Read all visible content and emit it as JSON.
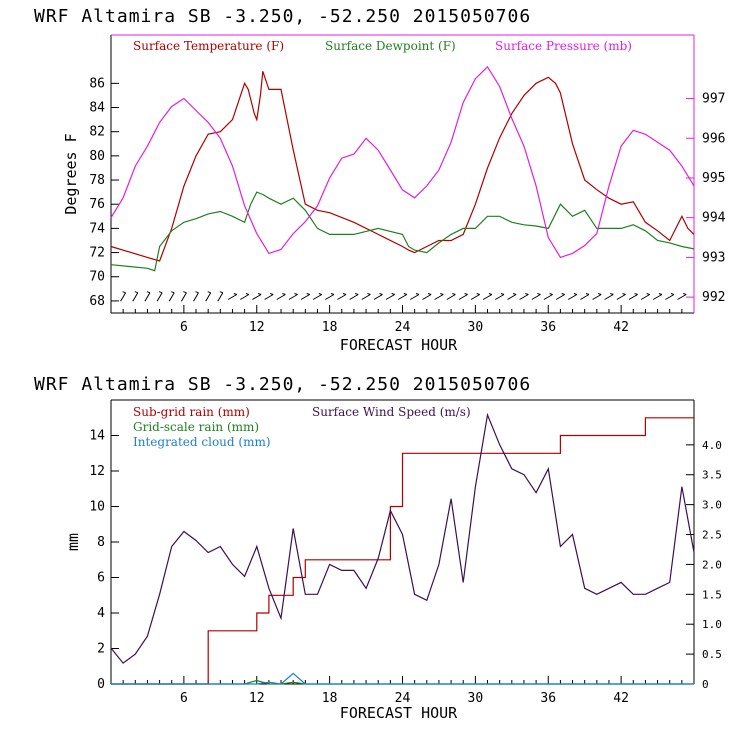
{
  "chart_data": [
    {
      "type": "line",
      "title": "WRF   Altamira  SB  -3.250, -52.250  2015050706",
      "xlabel": "FORECAST HOUR",
      "ylabel": "Degrees F",
      "y2label": "",
      "xlim": [
        0,
        48
      ],
      "ylim": [
        67,
        90
      ],
      "y2lim": [
        991.6,
        998.6
      ],
      "x_ticks": [
        "6",
        "12",
        "18",
        "24",
        "30",
        "36",
        "42"
      ],
      "y_ticks": [
        "68",
        "70",
        "72",
        "74",
        "76",
        "78",
        "80",
        "82",
        "84",
        "86"
      ],
      "y2_ticks": [
        "992",
        "993",
        "994",
        "995",
        "996",
        "997"
      ],
      "wind_barbs": "row of wind barbs along the bottom (light northeasterly)",
      "series": [
        {
          "name": "Surface Temperature (F)",
          "color": "#b00000",
          "axis": "left",
          "x": [
            0,
            3,
            4,
            5,
            6,
            7,
            8,
            9,
            10,
            11,
            11.3,
            11.8,
            12,
            12.3,
            12.5,
            13,
            14,
            15,
            16,
            17,
            18,
            20,
            22,
            24,
            24.5,
            25,
            26,
            27,
            28,
            29,
            30,
            31,
            32,
            33,
            34,
            35,
            36,
            36.6,
            37,
            38,
            39,
            40,
            41,
            42,
            43,
            44,
            45,
            46,
            47,
            47.5,
            48
          ],
          "values": [
            72.5,
            71.6,
            71.3,
            74,
            77.5,
            80,
            81.8,
            82,
            83,
            86,
            85.5,
            83.5,
            83,
            85,
            87,
            85.5,
            85.5,
            80.5,
            76,
            75.5,
            75.3,
            74.5,
            73.5,
            72.5,
            72.2,
            72,
            72.5,
            73,
            73,
            73.5,
            76,
            79,
            81.5,
            83.5,
            85,
            86,
            86.5,
            86,
            85.2,
            81,
            78,
            77.2,
            76.5,
            76,
            76.2,
            74.5,
            73.8,
            73,
            75,
            74,
            73.5
          ]
        },
        {
          "name": "Surface Dewpoint (F)",
          "color": "#208020",
          "axis": "left",
          "x": [
            0,
            3,
            3.6,
            4,
            5,
            6,
            7,
            8,
            9,
            10,
            11,
            11.5,
            12,
            12.5,
            13,
            14,
            15,
            16,
            17,
            18,
            20,
            22,
            24,
            24.5,
            25,
            26,
            27,
            28,
            29,
            30,
            31,
            32,
            33,
            34,
            35,
            36,
            37,
            38,
            39,
            40,
            41,
            42,
            43,
            44,
            45,
            46,
            47,
            48
          ],
          "values": [
            71,
            70.7,
            70.5,
            72.5,
            73.8,
            74.5,
            74.8,
            75.2,
            75.4,
            75,
            74.5,
            76,
            77,
            76.8,
            76.5,
            76,
            76.5,
            75.5,
            74,
            73.5,
            73.5,
            74,
            73.5,
            72.5,
            72.2,
            72,
            72.8,
            73.5,
            74,
            74,
            75,
            75,
            74.5,
            74.3,
            74.2,
            74,
            76,
            75,
            75.5,
            74,
            74,
            74,
            74.3,
            73.8,
            73,
            72.8,
            72.5,
            72.3
          ]
        },
        {
          "name": "Surface Pressure (mb)",
          "color": "#e020e0",
          "axis": "right",
          "x": [
            0,
            1,
            2,
            3,
            4,
            5,
            6,
            7,
            8,
            9,
            10,
            11,
            12,
            13,
            14,
            15,
            16,
            17,
            18,
            19,
            20,
            21,
            22,
            23,
            24,
            25,
            26,
            27,
            28,
            29,
            30,
            31,
            32,
            33,
            34,
            35,
            36,
            37,
            38,
            39,
            40,
            41,
            42,
            43,
            44,
            45,
            46,
            47,
            48
          ],
          "values": [
            994,
            994.5,
            995.3,
            995.8,
            996.4,
            996.8,
            997.0,
            996.7,
            996.4,
            996.0,
            995.3,
            994.3,
            993.6,
            993.1,
            993.2,
            993.6,
            993.9,
            994.3,
            995.0,
            995.5,
            995.6,
            996.0,
            995.7,
            995.2,
            994.7,
            994.5,
            994.8,
            995.2,
            995.9,
            996.9,
            997.5,
            997.8,
            997.3,
            996.5,
            995.8,
            994.8,
            993.5,
            993.0,
            993.1,
            993.3,
            993.6,
            994.8,
            995.8,
            996.2,
            996.1,
            995.9,
            995.7,
            995.3,
            994.8
          ]
        }
      ],
      "legend": [
        "Surface Temperature (F)",
        "Surface Dewpoint (F)",
        "Surface Pressure (mb)"
      ]
    },
    {
      "type": "line",
      "title": "WRF   Altamira  SB  -3.250, -52.250  2015050706",
      "xlabel": "FORECAST HOUR",
      "ylabel": "mm",
      "xlim": [
        0,
        48
      ],
      "ylim": [
        0,
        16
      ],
      "y2lim": [
        0,
        4.75
      ],
      "x_ticks": [
        "6",
        "12",
        "18",
        "24",
        "30",
        "36",
        "42"
      ],
      "y_ticks": [
        "0",
        "2",
        "4",
        "6",
        "8",
        "10",
        "12",
        "14"
      ],
      "y2_ticks": [
        "0",
        "0.5",
        "1.0",
        "1.5",
        "2.0",
        "2.5",
        "3.0",
        "3.5",
        "4.0"
      ],
      "series": [
        {
          "name": "Sub-grid rain (mm)",
          "color": "#b00000",
          "axis": "left",
          "x": [
            0,
            7,
            8,
            9,
            10,
            11,
            12,
            13,
            14,
            15,
            16,
            17,
            18,
            19,
            20,
            21,
            22,
            23,
            24,
            30,
            31,
            32,
            33,
            34,
            35,
            36,
            37,
            38,
            39,
            40,
            41,
            42,
            43,
            44,
            45,
            46,
            47,
            48
          ],
          "values": [
            0,
            0,
            3,
            3,
            3,
            3,
            4,
            5,
            5,
            6,
            7,
            7,
            7,
            7,
            7,
            7,
            7,
            10,
            13,
            13,
            13,
            13,
            13,
            13,
            13,
            13,
            14,
            14,
            14,
            14,
            14,
            14,
            14,
            15,
            15,
            15,
            15,
            15
          ]
        },
        {
          "name": "Surface Wind Speed (m/s)",
          "color": "#3c1050",
          "axis": "right",
          "x": [
            0,
            1,
            2,
            3,
            4,
            5,
            6,
            7,
            8,
            9,
            10,
            11,
            12,
            13,
            14,
            15,
            16,
            17,
            18,
            19,
            20,
            21,
            22,
            23,
            24,
            25,
            26,
            27,
            28,
            29,
            30,
            31,
            32,
            33,
            34,
            35,
            36,
            37,
            38,
            39,
            40,
            41,
            42,
            43,
            44,
            45,
            46,
            47,
            48
          ],
          "values": [
            0.6,
            0.35,
            0.5,
            0.8,
            1.5,
            2.3,
            2.55,
            2.4,
            2.2,
            2.3,
            2.0,
            1.8,
            2.3,
            1.6,
            1.1,
            2.6,
            1.5,
            1.5,
            2.0,
            1.9,
            1.9,
            1.6,
            2.1,
            2.9,
            2.5,
            1.5,
            1.4,
            2.0,
            3.1,
            1.7,
            3.3,
            4.5,
            4.0,
            3.6,
            3.5,
            3.2,
            3.6,
            2.3,
            2.5,
            1.6,
            1.5,
            1.6,
            1.7,
            1.5,
            1.5,
            1.6,
            1.7,
            3.3,
            2.2
          ]
        },
        {
          "name": "Grid-scale rain (mm)",
          "color": "#208020",
          "axis": "left",
          "x": [
            0,
            11,
            12,
            13,
            14,
            15,
            16,
            48
          ],
          "values": [
            0,
            0,
            0.2,
            0,
            0,
            0.1,
            0,
            0
          ]
        },
        {
          "name": "Integrated cloud (mm)",
          "color": "#1a80d0",
          "axis": "left",
          "x": [
            0,
            12,
            13,
            14,
            15,
            16,
            17,
            48
          ],
          "values": [
            0,
            0,
            0.1,
            0,
            0.6,
            0,
            0,
            0
          ]
        }
      ],
      "legend": [
        "Sub-grid rain (mm)",
        "Surface Wind Speed (m/s)",
        "Grid-scale rain (mm)",
        "Integrated cloud (mm)"
      ]
    }
  ]
}
